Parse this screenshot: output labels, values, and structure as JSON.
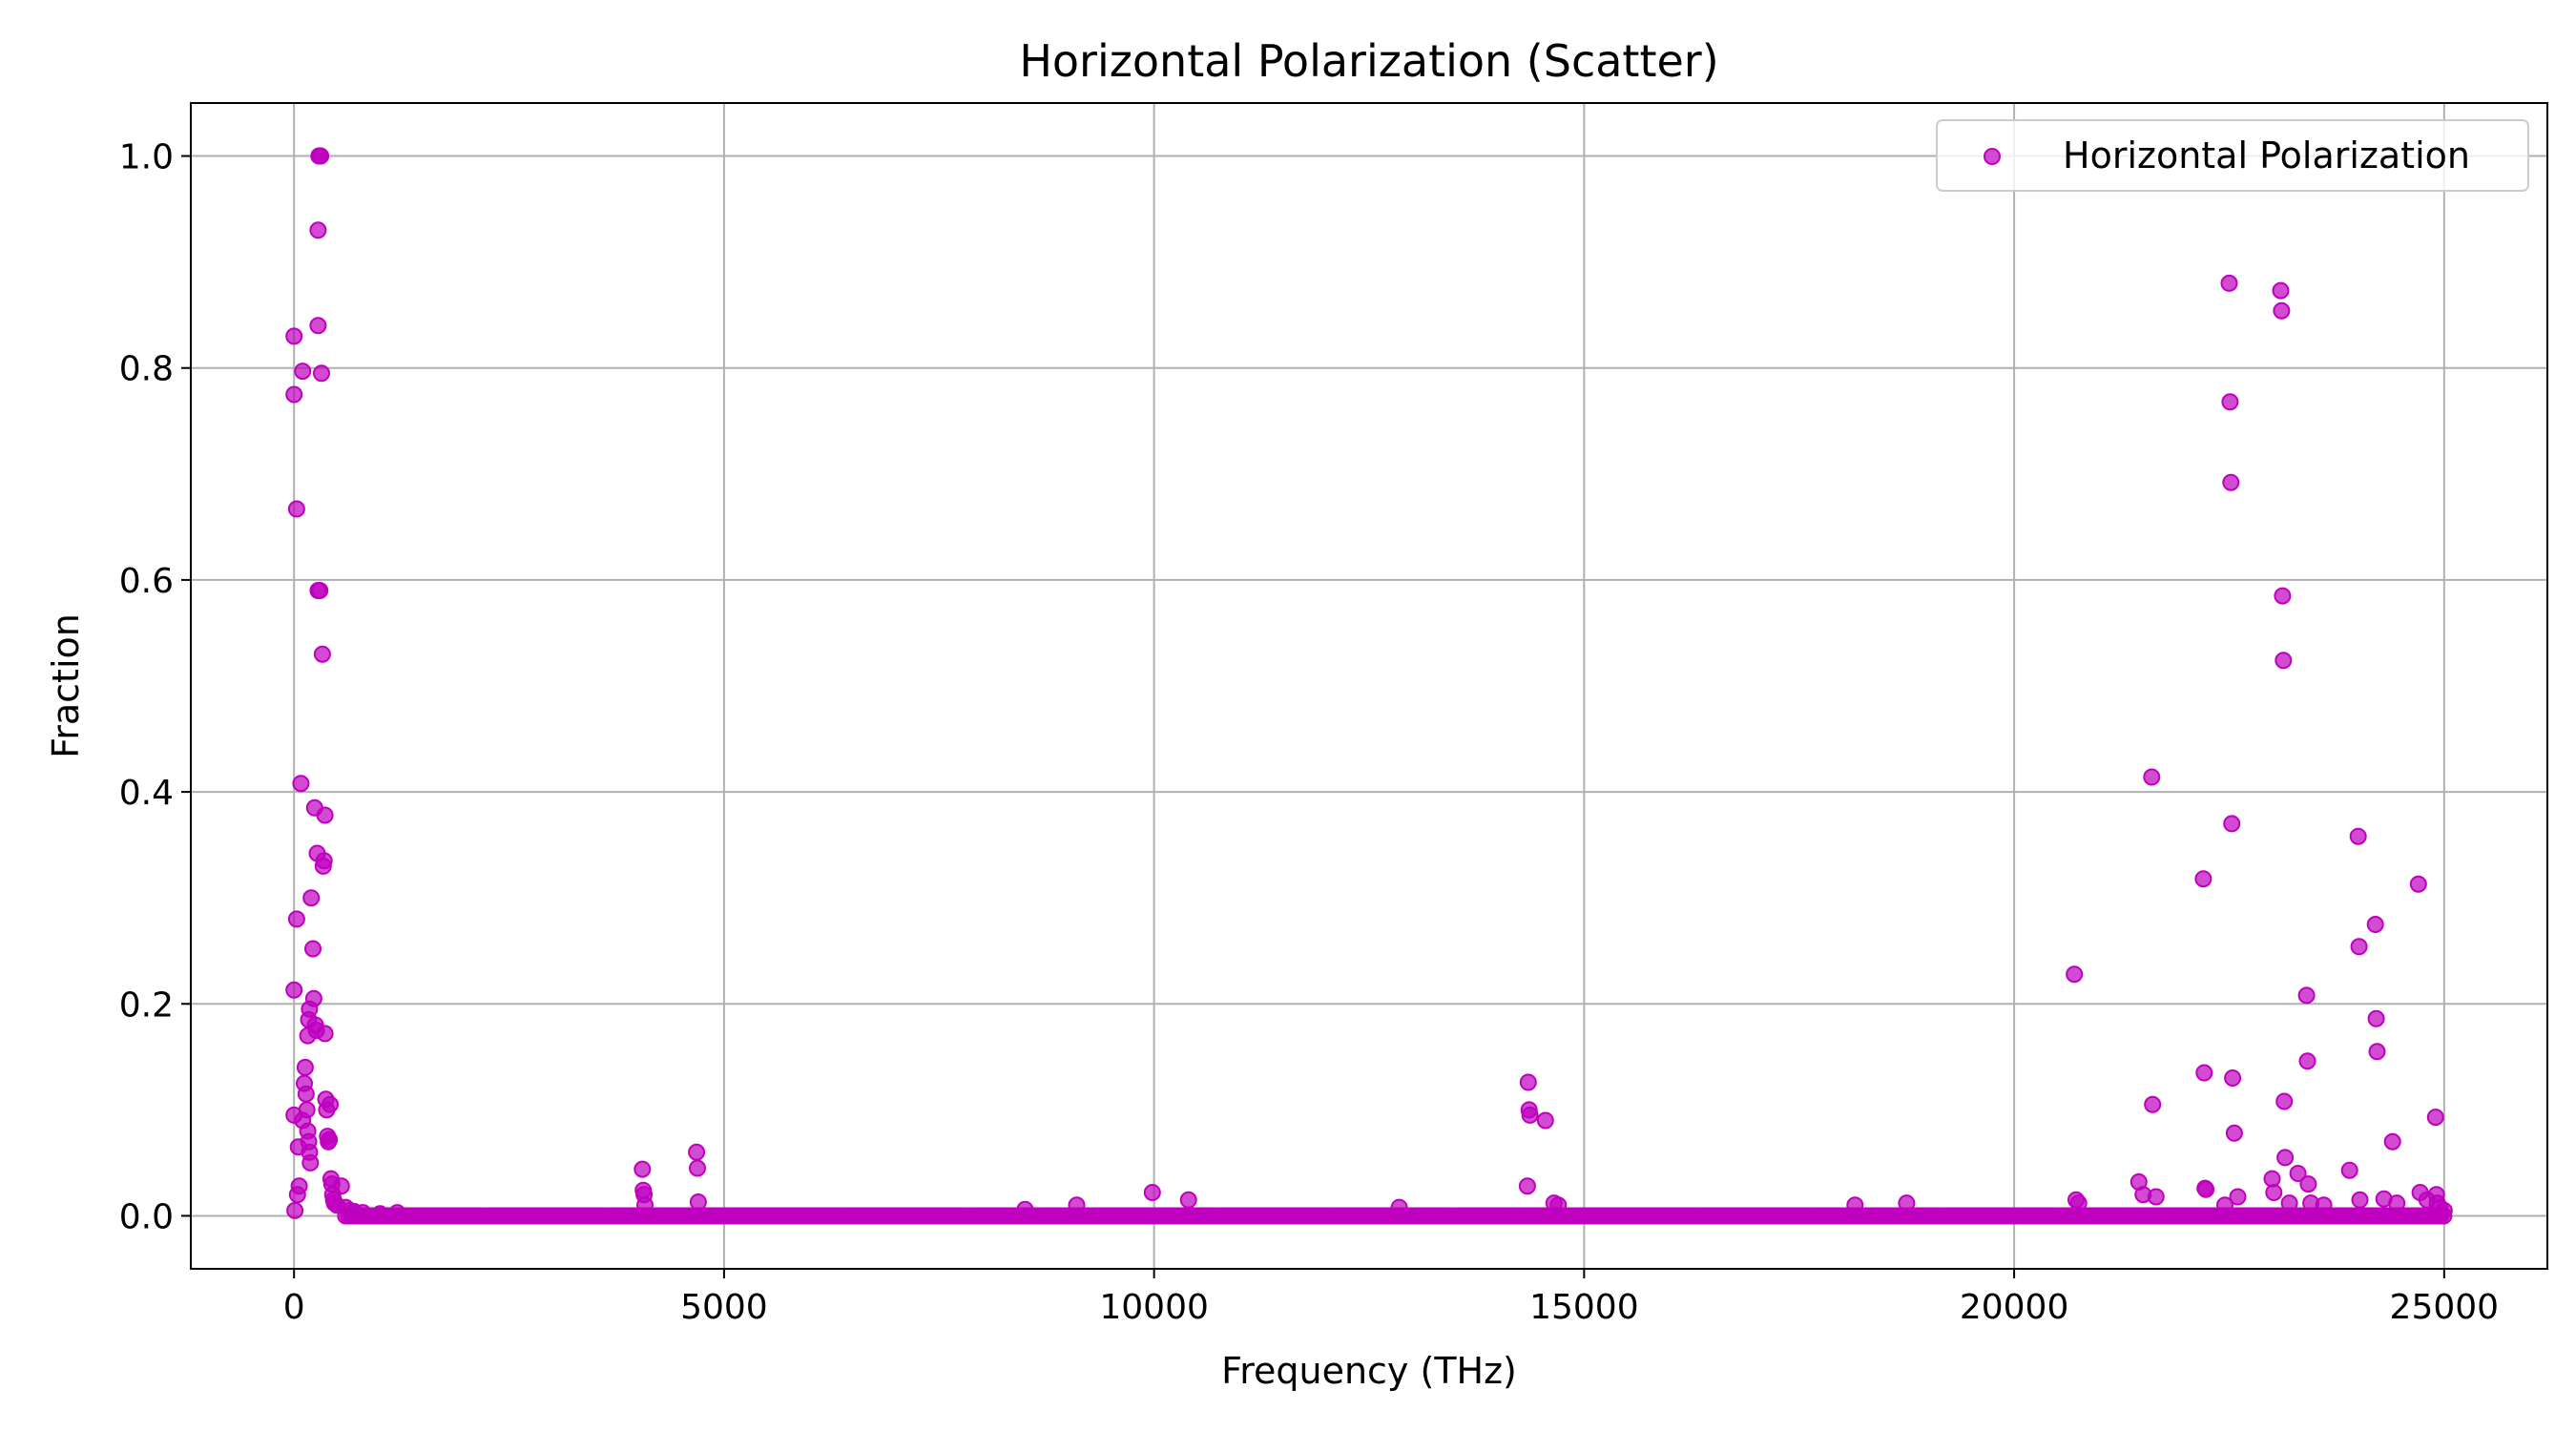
{
  "chart_data": {
    "type": "scatter",
    "title": "Horizontal Polarization (Scatter)",
    "xlabel": "Frequency (THz)",
    "ylabel": "Fraction",
    "xlim": [
      -1200,
      26200
    ],
    "ylim": [
      -0.05,
      1.05
    ],
    "xticks": [
      0,
      5000,
      10000,
      15000,
      20000,
      25000
    ],
    "xtick_labels": [
      "0",
      "5000",
      "10000",
      "15000",
      "20000",
      "25000"
    ],
    "yticks": [
      0.0,
      0.2,
      0.4,
      0.6,
      0.8,
      1.0
    ],
    "ytick_labels": [
      "0.0",
      "0.2",
      "0.4",
      "0.6",
      "0.8",
      "1.0"
    ],
    "grid": true,
    "legend_position": "top-right",
    "baseline": {
      "x_start": 600,
      "x_end": 25000,
      "y": 0.0,
      "note_points_dense": true
    },
    "series": [
      {
        "name": "Horizontal Polarization",
        "color": "#bf00bf",
        "points": [
          [
            0,
            0.83
          ],
          [
            0,
            0.775
          ],
          [
            30,
            0.667
          ],
          [
            30,
            0.28
          ],
          [
            0,
            0.213
          ],
          [
            80,
            0.408
          ],
          [
            100,
            0.797
          ],
          [
            0,
            0.095
          ],
          [
            50,
            0.065
          ],
          [
            60,
            0.028
          ],
          [
            10,
            0.005
          ],
          [
            40,
            0.02
          ],
          [
            100,
            0.09
          ],
          [
            120,
            0.125
          ],
          [
            130,
            0.14
          ],
          [
            140,
            0.115
          ],
          [
            150,
            0.1
          ],
          [
            160,
            0.08
          ],
          [
            170,
            0.07
          ],
          [
            180,
            0.06
          ],
          [
            190,
            0.05
          ],
          [
            160,
            0.17
          ],
          [
            170,
            0.185
          ],
          [
            180,
            0.195
          ],
          [
            200,
            0.3
          ],
          [
            220,
            0.252
          ],
          [
            230,
            0.205
          ],
          [
            240,
            0.385
          ],
          [
            250,
            0.18
          ],
          [
            260,
            0.175
          ],
          [
            270,
            0.342
          ],
          [
            280,
            0.59
          ],
          [
            280,
            0.84
          ],
          [
            280,
            0.93
          ],
          [
            290,
            1.0
          ],
          [
            300,
            1.0
          ],
          [
            310,
            1.0
          ],
          [
            300,
            0.59
          ],
          [
            320,
            0.795
          ],
          [
            330,
            0.53
          ],
          [
            340,
            0.33
          ],
          [
            350,
            0.335
          ],
          [
            360,
            0.378
          ],
          [
            360,
            0.172
          ],
          [
            370,
            0.11
          ],
          [
            380,
            0.1
          ],
          [
            390,
            0.075
          ],
          [
            400,
            0.07
          ],
          [
            410,
            0.072
          ],
          [
            420,
            0.105
          ],
          [
            430,
            0.035
          ],
          [
            440,
            0.03
          ],
          [
            450,
            0.02
          ],
          [
            460,
            0.015
          ],
          [
            470,
            0.012
          ],
          [
            500,
            0.01
          ],
          [
            550,
            0.028
          ],
          [
            600,
            0.008
          ],
          [
            650,
            0.005
          ],
          [
            700,
            0.004
          ],
          [
            800,
            0.003
          ],
          [
            1000,
            0.002
          ],
          [
            1200,
            0.003
          ],
          [
            4050,
            0.044
          ],
          [
            4060,
            0.024
          ],
          [
            4070,
            0.02
          ],
          [
            4080,
            0.01
          ],
          [
            4680,
            0.06
          ],
          [
            4690,
            0.045
          ],
          [
            4700,
            0.013
          ],
          [
            8500,
            0.006
          ],
          [
            9100,
            0.01
          ],
          [
            9980,
            0.022
          ],
          [
            10400,
            0.015
          ],
          [
            12850,
            0.008
          ],
          [
            14350,
            0.126
          ],
          [
            14360,
            0.1
          ],
          [
            14370,
            0.095
          ],
          [
            14340,
            0.028
          ],
          [
            14550,
            0.09
          ],
          [
            14650,
            0.012
          ],
          [
            14700,
            0.01
          ],
          [
            18150,
            0.01
          ],
          [
            18750,
            0.012
          ],
          [
            20700,
            0.228
          ],
          [
            20720,
            0.015
          ],
          [
            20750,
            0.012
          ],
          [
            21450,
            0.032
          ],
          [
            21500,
            0.02
          ],
          [
            21600,
            0.414
          ],
          [
            21610,
            0.105
          ],
          [
            21650,
            0.018
          ],
          [
            22200,
            0.318
          ],
          [
            22210,
            0.135
          ],
          [
            22220,
            0.026
          ],
          [
            22230,
            0.025
          ],
          [
            22500,
            0.88
          ],
          [
            22510,
            0.768
          ],
          [
            22520,
            0.692
          ],
          [
            22530,
            0.37
          ],
          [
            22540,
            0.13
          ],
          [
            22560,
            0.078
          ],
          [
            22600,
            0.018
          ],
          [
            22450,
            0.01
          ],
          [
            23000,
            0.035
          ],
          [
            23020,
            0.022
          ],
          [
            23100,
            0.873
          ],
          [
            23110,
            0.854
          ],
          [
            23120,
            0.585
          ],
          [
            23130,
            0.524
          ],
          [
            23140,
            0.108
          ],
          [
            23150,
            0.055
          ],
          [
            23200,
            0.012
          ],
          [
            23300,
            0.04
          ],
          [
            23400,
            0.208
          ],
          [
            23410,
            0.146
          ],
          [
            23420,
            0.03
          ],
          [
            23450,
            0.012
          ],
          [
            23600,
            0.01
          ],
          [
            23900,
            0.043
          ],
          [
            24000,
            0.358
          ],
          [
            24010,
            0.254
          ],
          [
            24020,
            0.015
          ],
          [
            24200,
            0.275
          ],
          [
            24210,
            0.186
          ],
          [
            24220,
            0.155
          ],
          [
            24300,
            0.016
          ],
          [
            24400,
            0.07
          ],
          [
            24450,
            0.012
          ],
          [
            24700,
            0.313
          ],
          [
            24720,
            0.022
          ],
          [
            24800,
            0.015
          ],
          [
            24900,
            0.093
          ],
          [
            24910,
            0.02
          ],
          [
            24920,
            0.012
          ],
          [
            24950,
            0.008
          ],
          [
            25000,
            0.005
          ]
        ]
      }
    ]
  }
}
